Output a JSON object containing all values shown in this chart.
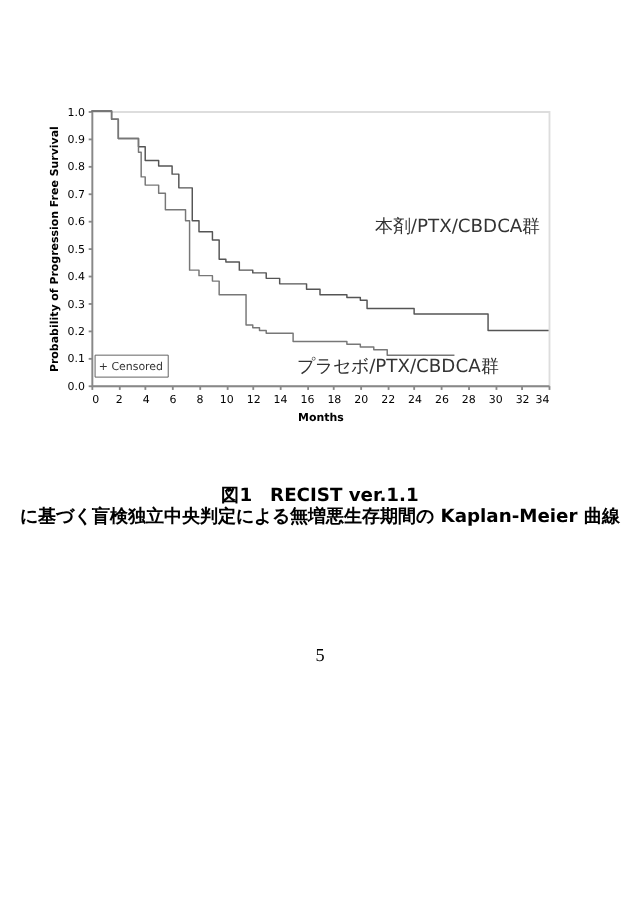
{
  "chart_data": {
    "type": "step",
    "title": "図1　RECIST ver.1.1 に基づく盲検独立中央判定による無増悪生存期間の Kaplan-Meier 曲線",
    "xlabel": "Months",
    "ylabel": "Probability of Progression Free Survival",
    "xlim": [
      0,
      34
    ],
    "xticks": [
      0,
      2,
      4,
      6,
      8,
      10,
      12,
      14,
      16,
      18,
      20,
      22,
      24,
      26,
      28,
      30,
      32,
      34
    ],
    "ylim": [
      0,
      1
    ],
    "yticks": [
      {
        "value": 0,
        "label": "0.0"
      },
      0.1,
      0.2,
      0.3,
      0.4,
      0.5,
      0.6,
      0.7,
      0.8,
      0.9,
      {
        "value": 1,
        "label": "1.0"
      }
    ],
    "grid": false,
    "legend": false,
    "series": [
      {
        "color": "#555555",
        "x": [
          0,
          1.5,
          2,
          3.5,
          4,
          5,
          6,
          6.5,
          7.5,
          8,
          9,
          9.5,
          10,
          11,
          12,
          13,
          14,
          16,
          17,
          19,
          20,
          20.5,
          24,
          29.5,
          34
        ],
        "values": [
          1.0,
          0.97,
          0.9,
          0.87,
          0.82,
          0.8,
          0.77,
          0.72,
          0.6,
          0.56,
          0.53,
          0.46,
          0.45,
          0.42,
          0.41,
          0.39,
          0.37,
          0.35,
          0.33,
          0.32,
          0.31,
          0.28,
          0.26,
          0.2,
          0.2
        ]
      },
      {
        "color": "#777777",
        "x": [
          0,
          1.5,
          2,
          3.5,
          3.7,
          4,
          5,
          5.5,
          7,
          7.3,
          8,
          9,
          9.5,
          11.5,
          12,
          12.5,
          13,
          15,
          19,
          20,
          21,
          22,
          27
        ],
        "values": [
          1.0,
          0.97,
          0.9,
          0.85,
          0.76,
          0.73,
          0.7,
          0.64,
          0.6,
          0.42,
          0.4,
          0.38,
          0.33,
          0.22,
          0.21,
          0.2,
          0.19,
          0.16,
          0.15,
          0.14,
          0.13,
          0.11,
          0.11
        ]
      }
    ],
    "annotations": [
      "本剤/PTX/CBDCA群",
      "プラセボ/PTX/CBDCA群",
      "+ Censored",
      "5"
    ]
  }
}
